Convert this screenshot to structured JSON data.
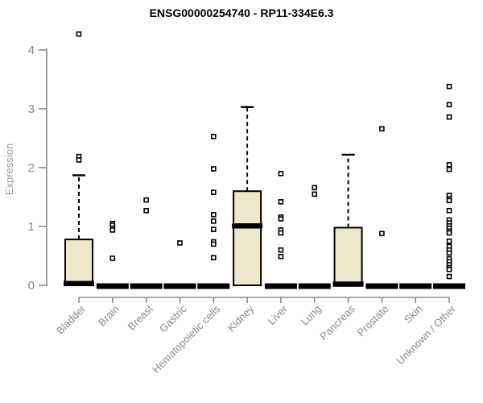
{
  "title": "ENSG00000254740 - RP11-334E6.3",
  "ylabel": "Expression",
  "colors": {
    "box_fill": "#EDE7CB",
    "box_stroke": "#000000",
    "median": "#000000",
    "whisker": "#000000",
    "outlier_fill": "#FFFFFF",
    "outlier_stroke": "#000000",
    "axis": "#8A8A8A",
    "tick_label": "#8A8A8A",
    "category_label": "#8A8A8A",
    "title_color": "#000000",
    "background": "#FFFFFF"
  },
  "chart_data": {
    "type": "boxplot",
    "title": "ENSG00000254740 - RP11-334E6.3",
    "xlabel": "",
    "ylabel": "Expression",
    "ylim": [
      0,
      4
    ],
    "yticks": [
      0,
      1,
      2,
      3,
      4
    ],
    "grid": false,
    "legend": "none",
    "categories": [
      "Bladder",
      "Brain",
      "Breast",
      "Gastric",
      "Hematopoietic cells",
      "Kidney",
      "Liver",
      "Lung",
      "Pancreas",
      "Prostate",
      "Skin",
      "Unknown / Other"
    ],
    "series": [
      {
        "name": "Bladder",
        "q1": 0,
        "median": 0.03,
        "q3": 0.78,
        "whisker_low": 0,
        "whisker_high": 1.87,
        "outliers": [
          4.27,
          2.19,
          2.13
        ]
      },
      {
        "name": "Brain",
        "q1": 0,
        "median": 0,
        "q3": 0,
        "whisker_low": 0,
        "whisker_high": 0,
        "outliers": [
          1.05,
          1.02,
          0.97,
          0.94,
          0.46
        ]
      },
      {
        "name": "Breast",
        "q1": 0,
        "median": 0,
        "q3": 0,
        "whisker_low": 0,
        "whisker_high": 0,
        "outliers": [
          1.45,
          1.27
        ]
      },
      {
        "name": "Gastric",
        "q1": 0,
        "median": 0,
        "q3": 0,
        "whisker_low": 0,
        "whisker_high": 0,
        "outliers": [
          0.72
        ]
      },
      {
        "name": "Hematopoietic cells",
        "q1": 0,
        "median": 0,
        "q3": 0,
        "whisker_low": 0,
        "whisker_high": 0,
        "outliers": [
          2.53,
          1.98,
          1.58,
          1.2,
          1.09,
          0.95,
          0.74,
          0.7,
          0.47
        ]
      },
      {
        "name": "Kidney",
        "q1": 0,
        "median": 1.01,
        "q3": 1.6,
        "whisker_low": 0,
        "whisker_high": 3.03,
        "outliers": []
      },
      {
        "name": "Liver",
        "q1": 0,
        "median": 0,
        "q3": 0,
        "whisker_low": 0,
        "whisker_high": 0,
        "outliers": [
          1.9,
          1.42,
          1.16,
          1.13,
          0.94,
          0.89,
          0.6,
          0.49
        ]
      },
      {
        "name": "Lung",
        "q1": 0,
        "median": 0,
        "q3": 0,
        "whisker_low": 0,
        "whisker_high": 0,
        "outliers": [
          1.66,
          1.55
        ]
      },
      {
        "name": "Pancreas",
        "q1": 0,
        "median": 0.02,
        "q3": 0.98,
        "whisker_low": 0,
        "whisker_high": 2.22,
        "outliers": []
      },
      {
        "name": "Prostate",
        "q1": 0,
        "median": 0,
        "q3": 0,
        "whisker_low": 0,
        "whisker_high": 0,
        "outliers": [
          2.66,
          0.88
        ]
      },
      {
        "name": "Skin",
        "q1": 0,
        "median": 0,
        "q3": 0,
        "whisker_low": 0,
        "whisker_high": 0,
        "outliers": []
      },
      {
        "name": "Unknown / Other",
        "q1": 0,
        "median": 0,
        "q3": 0,
        "whisker_low": 0,
        "whisker_high": 0,
        "outliers": [
          3.38,
          3.07,
          2.86,
          2.05,
          1.97,
          1.53,
          1.47,
          1.44,
          1.27,
          1.11,
          1.06,
          1.01,
          0.97,
          0.92,
          0.89,
          0.75,
          0.66,
          0.6,
          0.55,
          0.45,
          0.4,
          0.35,
          0.3,
          0.27,
          0.15
        ]
      }
    ]
  }
}
